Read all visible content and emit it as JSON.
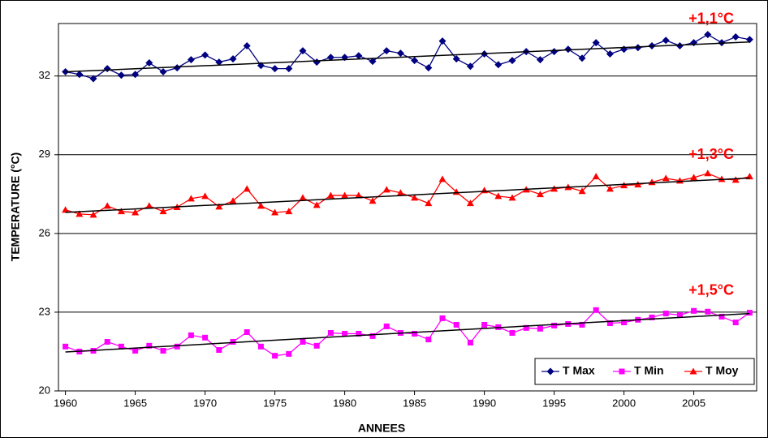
{
  "chart_data": {
    "type": "line",
    "x_label": "ANNEES",
    "y_label": "TEMPERATURE (°C)",
    "x": [
      1960,
      1961,
      1962,
      1963,
      1964,
      1965,
      1966,
      1967,
      1968,
      1969,
      1970,
      1971,
      1972,
      1973,
      1974,
      1975,
      1976,
      1977,
      1978,
      1979,
      1980,
      1981,
      1982,
      1983,
      1984,
      1985,
      1986,
      1987,
      1988,
      1989,
      1990,
      1991,
      1992,
      1993,
      1994,
      1995,
      1996,
      1997,
      1998,
      1999,
      2000,
      2001,
      2002,
      2003,
      2004,
      2005,
      2006,
      2007,
      2008,
      2009
    ],
    "series": [
      {
        "name": "T Max",
        "color": "#000080",
        "marker": "diamond",
        "values": [
          32.16,
          32.06,
          31.9,
          32.28,
          32.03,
          32.06,
          32.5,
          32.16,
          32.31,
          32.62,
          32.8,
          32.53,
          32.65,
          33.15,
          32.4,
          32.28,
          32.28,
          32.96,
          32.53,
          32.71,
          32.71,
          32.77,
          32.56,
          32.96,
          32.87,
          32.59,
          32.31,
          33.33,
          32.65,
          32.37,
          32.84,
          32.43,
          32.59,
          32.93,
          32.62,
          32.93,
          33.02,
          32.68,
          33.27,
          32.84,
          33.02,
          33.08,
          33.15,
          33.36,
          33.15,
          33.27,
          33.58,
          33.27,
          33.49,
          33.39
        ]
      },
      {
        "name": "T Min",
        "color": "#ff00ff",
        "marker": "square",
        "values": [
          21.69,
          21.5,
          21.53,
          21.87,
          21.69,
          21.53,
          21.72,
          21.53,
          21.69,
          22.12,
          22.03,
          21.56,
          21.87,
          22.24,
          21.69,
          21.34,
          21.41,
          21.87,
          21.72,
          22.21,
          22.18,
          22.18,
          22.09,
          22.46,
          22.21,
          22.18,
          21.96,
          22.77,
          22.52,
          21.84,
          22.52,
          22.43,
          22.21,
          22.4,
          22.37,
          22.49,
          22.55,
          22.52,
          23.08,
          22.58,
          22.61,
          22.71,
          22.8,
          22.95,
          22.89,
          23.05,
          23.02,
          22.83,
          22.61,
          22.98
        ]
      },
      {
        "name": "T Moy",
        "color": "#ff0000",
        "marker": "triangle",
        "values": [
          26.9,
          26.74,
          26.71,
          27.05,
          26.84,
          26.8,
          27.05,
          26.84,
          27.0,
          27.33,
          27.42,
          27.02,
          27.24,
          27.7,
          27.05,
          26.8,
          26.84,
          27.36,
          27.08,
          27.45,
          27.45,
          27.45,
          27.24,
          27.67,
          27.55,
          27.36,
          27.15,
          28.07,
          27.58,
          27.15,
          27.64,
          27.42,
          27.36,
          27.67,
          27.49,
          27.7,
          27.76,
          27.61,
          28.17,
          27.7,
          27.83,
          27.86,
          27.95,
          28.1,
          28.01,
          28.13,
          28.29,
          28.07,
          28.04,
          28.17
        ]
      }
    ],
    "annotations": [
      {
        "text": "+1,1°C",
        "series": 0
      },
      {
        "text": "+1,3°C",
        "series": 2
      },
      {
        "text": "+1,5°C",
        "series": 1
      }
    ],
    "annotation_color": "#ff0000",
    "trendline": true,
    "xlim": [
      1959.5,
      2009.5
    ],
    "xticks": [
      1960,
      1965,
      1970,
      1975,
      1980,
      1985,
      1990,
      1995,
      2000,
      2005
    ],
    "ylim": [
      20,
      34
    ],
    "yticks": [
      20,
      23,
      26,
      29,
      32
    ],
    "grid": true,
    "legend": "lower right"
  }
}
